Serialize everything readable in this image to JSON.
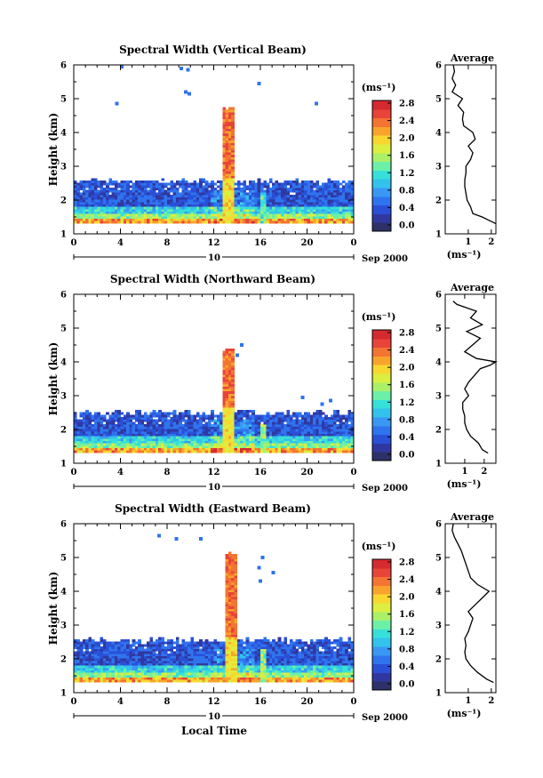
{
  "figure": {
    "xlabel": "Local Time",
    "date_label": "Sep 2000",
    "day_label": "10",
    "colorbar_unit": "(ms⁻¹)",
    "colors": {
      "scale": [
        "#2d3168",
        "#3038a0",
        "#2a50d8",
        "#2f74ee",
        "#3a98f4",
        "#33c2ec",
        "#36e0d8",
        "#6cf0a8",
        "#aaf068",
        "#dcee40",
        "#f8d830",
        "#f8a42c",
        "#f47432",
        "#e8443a",
        "#d42a30"
      ]
    }
  },
  "chart_data": [
    {
      "type": "heatmap",
      "title": "Spectral Width (Vertical Beam)",
      "ylabel": "Height (km)",
      "xlim": [
        0,
        24
      ],
      "ylim": [
        1,
        6
      ],
      "xticks": [
        "0",
        "4",
        "8",
        "12",
        "16",
        "20",
        "0"
      ],
      "yticks": [
        "1",
        "2",
        "3",
        "4",
        "5",
        "6"
      ],
      "colorbar": {
        "min": 0.0,
        "max": 2.8,
        "ticks": [
          "0.0",
          "0.4",
          "0.8",
          "1.2",
          "1.6",
          "2.0",
          "2.4",
          "2.8"
        ]
      },
      "base_top_km": 2.5,
      "convective_column": {
        "start_h": 12.7,
        "end_h": 13.7,
        "top_km": 4.75,
        "value": 2.7
      },
      "secondary_column": {
        "start_h": 15.9,
        "end_h": 16.4,
        "top_km": 2.2,
        "value": 1.6
      },
      "sparse_echoes": [
        {
          "t": 4.1,
          "h": 5.95
        },
        {
          "t": 9.2,
          "h": 5.9
        },
        {
          "t": 9.8,
          "h": 5.85
        },
        {
          "t": 9.6,
          "h": 5.2
        },
        {
          "t": 9.9,
          "h": 5.15
        },
        {
          "t": 3.7,
          "h": 4.85
        },
        {
          "t": 15.9,
          "h": 5.45
        },
        {
          "t": 20.8,
          "h": 4.85
        }
      ],
      "profile": {
        "title": "Average",
        "xlabel": "(ms⁻¹)",
        "xlim": [
          0,
          2.2
        ],
        "xticks": [
          "1",
          "2"
        ],
        "height_km": [
          1.3,
          1.4,
          1.5,
          1.6,
          1.8,
          2.0,
          2.2,
          2.4,
          2.6,
          2.8,
          3.0,
          3.2,
          3.4,
          3.6,
          3.8,
          4.0,
          4.2,
          4.4,
          4.6,
          4.8,
          5.0,
          5.2,
          5.4,
          5.6,
          5.8,
          6.0
        ],
        "width_ms": [
          2.2,
          1.9,
          1.6,
          1.2,
          1.1,
          0.95,
          0.9,
          0.85,
          0.85,
          0.9,
          0.9,
          1.1,
          1.2,
          1.0,
          1.3,
          1.2,
          0.8,
          0.75,
          0.8,
          0.55,
          0.75,
          0.3,
          0.45,
          0.3,
          0.4,
          0.35
        ]
      }
    },
    {
      "type": "heatmap",
      "title": "Spectral Width (Northward Beam)",
      "ylabel": "Height (km)",
      "xlim": [
        0,
        24
      ],
      "ylim": [
        1,
        6
      ],
      "xticks": [
        "0",
        "4",
        "8",
        "12",
        "16",
        "20",
        "0"
      ],
      "yticks": [
        "1",
        "2",
        "3",
        "4",
        "5",
        "6"
      ],
      "colorbar": {
        "min": 0.0,
        "max": 2.8,
        "ticks": [
          "0.0",
          "0.4",
          "0.8",
          "1.2",
          "1.6",
          "2.0",
          "2.4",
          "2.8"
        ]
      },
      "base_top_km": 2.45,
      "convective_column": {
        "start_h": 12.6,
        "end_h": 13.6,
        "top_km": 4.4,
        "value": 2.7
      },
      "secondary_column": {
        "start_h": 15.8,
        "end_h": 16.4,
        "top_km": 2.1,
        "value": 1.8
      },
      "sparse_echoes": [
        {
          "t": 14.4,
          "h": 4.5
        },
        {
          "t": 14.0,
          "h": 4.2
        },
        {
          "t": 19.6,
          "h": 2.95
        },
        {
          "t": 22.0,
          "h": 2.85
        },
        {
          "t": 21.3,
          "h": 2.75
        }
      ],
      "profile": {
        "title": "Average",
        "xlabel": "(ms⁻¹)",
        "xlim": [
          0,
          2.6
        ],
        "xticks": [
          "1",
          "2"
        ],
        "height_km": [
          1.3,
          1.4,
          1.6,
          1.8,
          2.0,
          2.2,
          2.4,
          2.6,
          2.8,
          3.0,
          3.2,
          3.4,
          3.6,
          3.8,
          3.9,
          4.0,
          4.1,
          4.3,
          4.5,
          4.7,
          4.9,
          5.1,
          5.3,
          5.5,
          5.7,
          5.8
        ],
        "width_ms": [
          2.2,
          1.9,
          1.7,
          1.3,
          1.1,
          1.0,
          1.0,
          0.9,
          0.9,
          1.2,
          1.0,
          1.2,
          1.5,
          1.8,
          2.3,
          2.6,
          1.6,
          1.0,
          1.4,
          1.8,
          1.1,
          1.9,
          1.3,
          1.6,
          0.6,
          0.4
        ]
      }
    },
    {
      "type": "heatmap",
      "title": "Spectral Width (Eastward Beam)",
      "ylabel": "Height (km)",
      "xlim": [
        0,
        24
      ],
      "ylim": [
        1,
        6
      ],
      "xticks": [
        "0",
        "4",
        "8",
        "12",
        "16",
        "20",
        "0"
      ],
      "yticks": [
        "1",
        "2",
        "3",
        "4",
        "5",
        "6"
      ],
      "colorbar": {
        "min": 0.0,
        "max": 2.8,
        "ticks": [
          "0.0",
          "0.4",
          "0.8",
          "1.2",
          "1.6",
          "2.0",
          "2.4",
          "2.8"
        ]
      },
      "base_top_km": 2.5,
      "convective_column": {
        "start_h": 12.8,
        "end_h": 13.8,
        "top_km": 5.15,
        "value": 2.7
      },
      "secondary_column": {
        "start_h": 15.9,
        "end_h": 16.5,
        "top_km": 2.3,
        "value": 1.9
      },
      "sparse_echoes": [
        {
          "t": 7.3,
          "h": 5.65
        },
        {
          "t": 8.8,
          "h": 5.55
        },
        {
          "t": 10.9,
          "h": 5.55
        },
        {
          "t": 16.2,
          "h": 5.0
        },
        {
          "t": 15.9,
          "h": 4.7
        },
        {
          "t": 17.1,
          "h": 4.55
        },
        {
          "t": 16.0,
          "h": 4.3
        }
      ],
      "profile": {
        "title": "Average",
        "xlabel": "(ms⁻¹)",
        "xlim": [
          0,
          2.2
        ],
        "xticks": [
          "1",
          "2"
        ],
        "height_km": [
          1.3,
          1.4,
          1.6,
          1.8,
          2.0,
          2.2,
          2.4,
          2.6,
          2.8,
          3.0,
          3.2,
          3.4,
          3.6,
          3.8,
          4.0,
          4.2,
          4.4,
          4.6,
          4.8,
          5.0,
          5.2,
          5.4,
          5.6,
          5.8,
          6.0
        ],
        "width_ms": [
          2.1,
          1.8,
          1.4,
          1.1,
          0.9,
          0.85,
          0.9,
          0.85,
          1.0,
          1.1,
          1.2,
          1.0,
          1.3,
          1.6,
          1.9,
          1.4,
          1.1,
          1.0,
          0.9,
          0.8,
          0.7,
          0.55,
          0.4,
          0.3,
          0.35
        ]
      }
    }
  ]
}
